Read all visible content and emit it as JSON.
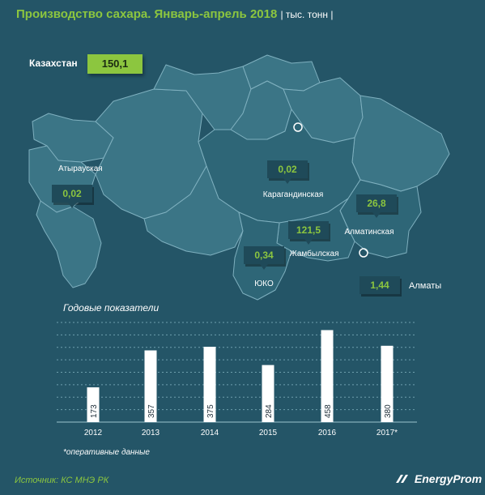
{
  "title": "Производство сахара. Январь-апрель 2018",
  "units": "| тыс. тонн |",
  "total": {
    "label": "Казахстан",
    "value": "150,1"
  },
  "regions": [
    {
      "name": "Атырауская",
      "value": "0,02"
    },
    {
      "name": "Карагандинская",
      "value": "0,02"
    },
    {
      "name": "Алматинская",
      "value": "26,8"
    },
    {
      "name": "Жамбылская",
      "value": "121,5"
    },
    {
      "name": "ЮКО",
      "value": "0,34"
    },
    {
      "name": "Алматы",
      "value": "1,44"
    }
  ],
  "colors": {
    "background": "#245567",
    "map_fill": "#3b7586",
    "map_highlight": "#2e6677",
    "map_stroke": "#7fb0bf",
    "accent": "#8cc63f",
    "bar": "#ffffff"
  },
  "chart_data": {
    "type": "bar",
    "title": "Годовые показатели",
    "categories": [
      "2012",
      "2013",
      "2014",
      "2015",
      "2016",
      "2017*"
    ],
    "values": [
      173,
      357,
      375,
      284,
      458,
      380
    ],
    "value_labels": [
      "173",
      "357",
      "375",
      "284",
      "458",
      "380"
    ],
    "ylim": [
      0,
      480
    ],
    "grid": true
  },
  "footnote": "*оперативные данные",
  "source": "Источник: КС МНЭ РК",
  "brand": "EnergyProm"
}
